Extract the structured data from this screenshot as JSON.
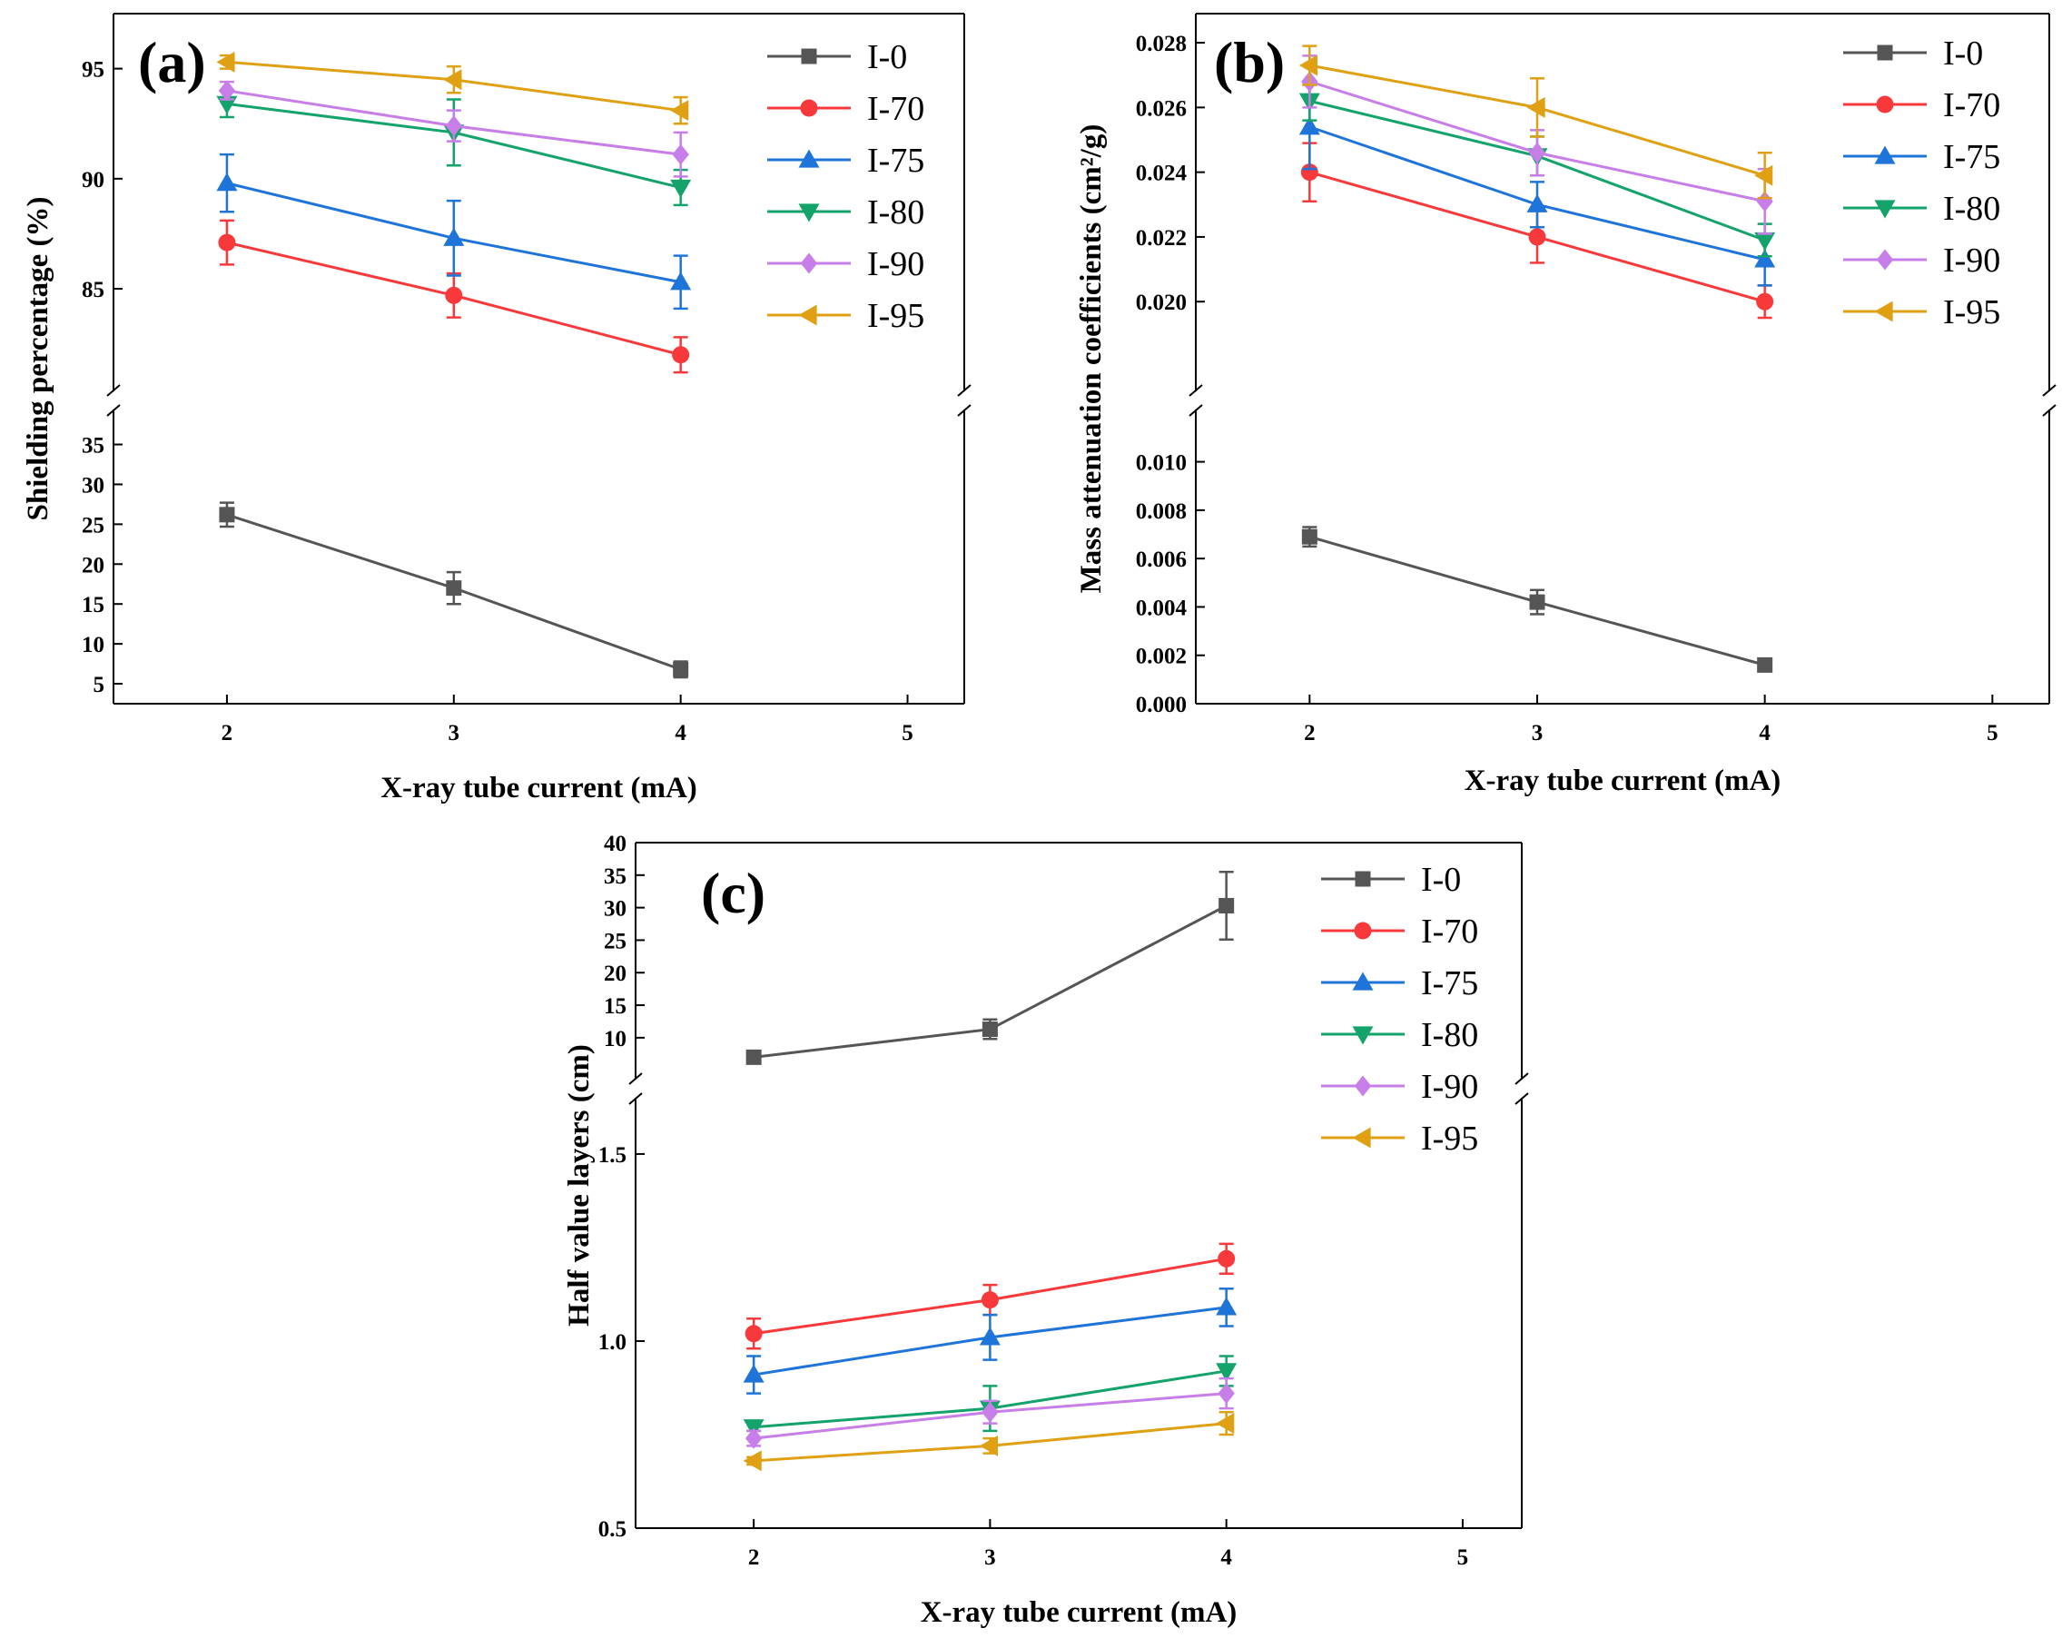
{
  "chart_data": [
    {
      "type": "line",
      "panel_label": "(a)",
      "xlabel": "X-ray tube current (mA)",
      "ylabel": "Shielding percentage (%)",
      "x_ticks": [
        "2",
        "3",
        "4",
        "5"
      ],
      "x_range": [
        1.5,
        5.25
      ],
      "broken_y_axis": true,
      "y_upper_ticks": [
        "85",
        "90",
        "95"
      ],
      "y_upper_range": [
        80.3,
        97.5
      ],
      "y_lower_ticks": [
        "5",
        "10",
        "15",
        "20",
        "25",
        "30",
        "35"
      ],
      "y_lower_range": [
        2.5,
        39.5
      ],
      "legend_position": "top-right",
      "series": [
        {
          "name": "I-0",
          "color": "#555555",
          "marker": "square",
          "segment": "lower",
          "x": [
            2,
            3,
            4
          ],
          "values": [
            26.2,
            17.0,
            6.8
          ],
          "errors": [
            1.5,
            2.0,
            1.0
          ]
        },
        {
          "name": "I-70",
          "color": "#f8393b",
          "marker": "circle",
          "segment": "upper",
          "x": [
            2,
            3,
            4
          ],
          "values": [
            87.1,
            84.7,
            82.0
          ],
          "errors": [
            1.0,
            1.0,
            0.8
          ]
        },
        {
          "name": "I-75",
          "color": "#1f74d9",
          "marker": "triangle-up",
          "segment": "upper",
          "x": [
            2,
            3,
            4
          ],
          "values": [
            89.8,
            87.3,
            85.3
          ],
          "errors": [
            1.3,
            1.7,
            1.2
          ]
        },
        {
          "name": "I-80",
          "color": "#13a36b",
          "marker": "triangle-down",
          "segment": "upper",
          "x": [
            2,
            3,
            4
          ],
          "values": [
            93.4,
            92.1,
            89.6
          ],
          "errors": [
            0.6,
            1.5,
            0.8
          ]
        },
        {
          "name": "I-90",
          "color": "#c77ee8",
          "marker": "diamond",
          "segment": "upper",
          "x": [
            2,
            3,
            4
          ],
          "values": [
            94.0,
            92.4,
            91.1
          ],
          "errors": [
            0.4,
            0.7,
            1.0
          ]
        },
        {
          "name": "I-95",
          "color": "#e0a014",
          "marker": "triangle-left",
          "segment": "upper",
          "x": [
            2,
            3,
            4
          ],
          "values": [
            95.3,
            94.5,
            93.1
          ],
          "errors": [
            0.3,
            0.6,
            0.6
          ]
        }
      ]
    },
    {
      "type": "line",
      "panel_label": "(b)",
      "xlabel": "X-ray tube current (mA)",
      "ylabel": "Mass attenuation coefficients (cm²/g)",
      "x_ticks": [
        "2",
        "3",
        "4",
        "5"
      ],
      "x_range": [
        1.5,
        5.25
      ],
      "broken_y_axis": true,
      "y_upper_ticks": [
        "0.020",
        "0.022",
        "0.024",
        "0.026",
        "0.028"
      ],
      "y_upper_range": [
        0.0172,
        0.0289
      ],
      "y_lower_ticks": [
        "0.000",
        "0.002",
        "0.004",
        "0.006",
        "0.008",
        "0.010"
      ],
      "y_lower_range": [
        0.0,
        0.0122
      ],
      "legend_position": "top-right",
      "series": [
        {
          "name": "I-0",
          "color": "#555555",
          "marker": "square",
          "segment": "lower",
          "x": [
            2,
            3,
            4
          ],
          "values": [
            0.0069,
            0.0042,
            0.0016
          ],
          "errors": [
            0.0004,
            0.0005,
            0.0002
          ]
        },
        {
          "name": "I-70",
          "color": "#f8393b",
          "marker": "circle",
          "segment": "upper",
          "x": [
            2,
            3,
            4
          ],
          "values": [
            0.024,
            0.022,
            0.02
          ],
          "errors": [
            0.0009,
            0.0008,
            0.0005
          ]
        },
        {
          "name": "I-75",
          "color": "#1f74d9",
          "marker": "triangle-up",
          "segment": "upper",
          "x": [
            2,
            3,
            4
          ],
          "values": [
            0.0254,
            0.023,
            0.0213
          ],
          "errors": [
            0.0013,
            0.0007,
            0.0008
          ]
        },
        {
          "name": "I-80",
          "color": "#13a36b",
          "marker": "triangle-down",
          "segment": "upper",
          "x": [
            2,
            3,
            4
          ],
          "values": [
            0.0262,
            0.0245,
            0.0219
          ],
          "errors": [
            0.0006,
            0.0006,
            0.0005
          ]
        },
        {
          "name": "I-90",
          "color": "#c77ee8",
          "marker": "diamond",
          "segment": "upper",
          "x": [
            2,
            3,
            4
          ],
          "values": [
            0.0268,
            0.0246,
            0.0231
          ],
          "errors": [
            0.0008,
            0.0007,
            0.001
          ]
        },
        {
          "name": "I-95",
          "color": "#e0a014",
          "marker": "triangle-left",
          "segment": "upper",
          "x": [
            2,
            3,
            4
          ],
          "values": [
            0.0273,
            0.026,
            0.0239
          ],
          "errors": [
            0.0006,
            0.0009,
            0.0007
          ]
        }
      ]
    },
    {
      "type": "line",
      "panel_label": "(c)",
      "xlabel": "X-ray tube current (mA)",
      "ylabel": "Half value layers (cm)",
      "x_ticks": [
        "2",
        "3",
        "4",
        "5"
      ],
      "x_range": [
        1.5,
        5.25
      ],
      "broken_y_axis": true,
      "y_upper_ticks": [
        "10",
        "15",
        "20",
        "25",
        "30",
        "35",
        "40"
      ],
      "y_upper_range": [
        3.0,
        40.0
      ],
      "y_lower_ticks": [
        "0.5",
        "1.0",
        "1.5"
      ],
      "y_lower_range": [
        0.5,
        1.66
      ],
      "legend_position": "top-right",
      "series": [
        {
          "name": "I-0",
          "color": "#555555",
          "marker": "square",
          "segment": "upper",
          "x": [
            2,
            3,
            4
          ],
          "values": [
            7.0,
            11.3,
            30.3
          ],
          "errors": [
            0.4,
            1.5,
            5.2
          ]
        },
        {
          "name": "I-70",
          "color": "#f8393b",
          "marker": "circle",
          "segment": "lower",
          "x": [
            2,
            3,
            4
          ],
          "values": [
            1.02,
            1.11,
            1.22
          ],
          "errors": [
            0.04,
            0.04,
            0.04
          ]
        },
        {
          "name": "I-75",
          "color": "#1f74d9",
          "marker": "triangle-up",
          "segment": "lower",
          "x": [
            2,
            3,
            4
          ],
          "values": [
            0.91,
            1.01,
            1.09
          ],
          "errors": [
            0.05,
            0.06,
            0.05
          ]
        },
        {
          "name": "I-80",
          "color": "#13a36b",
          "marker": "triangle-down",
          "segment": "lower",
          "x": [
            2,
            3,
            4
          ],
          "values": [
            0.77,
            0.82,
            0.92
          ],
          "errors": [
            0.01,
            0.06,
            0.04
          ]
        },
        {
          "name": "I-90",
          "color": "#c77ee8",
          "marker": "diamond",
          "segment": "lower",
          "x": [
            2,
            3,
            4
          ],
          "values": [
            0.74,
            0.81,
            0.86
          ],
          "errors": [
            0.02,
            0.03,
            0.04
          ]
        },
        {
          "name": "I-95",
          "color": "#e0a014",
          "marker": "triangle-left",
          "segment": "lower",
          "x": [
            2,
            3,
            4
          ],
          "values": [
            0.68,
            0.72,
            0.78
          ],
          "errors": [
            0.01,
            0.02,
            0.03
          ]
        }
      ]
    }
  ]
}
